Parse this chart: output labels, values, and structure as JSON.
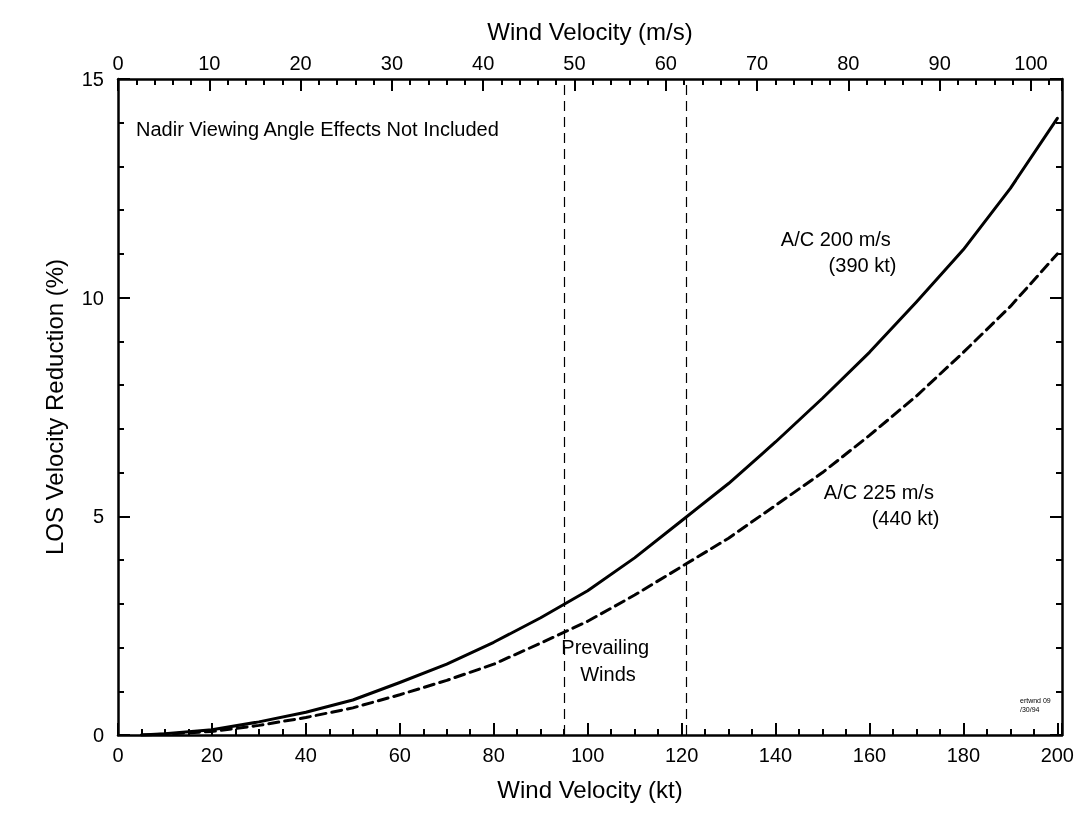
{
  "chart_data": {
    "type": "line",
    "xlabel": "Wind Velocity (kt)",
    "x2label": "Wind Velocity (m/s)",
    "ylabel": "LOS Velocity Reduction (%)",
    "x": [
      5,
      10,
      20,
      30,
      40,
      50,
      60,
      70,
      80,
      90,
      100,
      110,
      120,
      130,
      140,
      150,
      160,
      170,
      180,
      190,
      200
    ],
    "series": [
      {
        "name": "A/C 200 m/s (390 kt)",
        "color": "#000000",
        "line_style": "solid",
        "values": [
          0,
          0.03,
          0.12,
          0.3,
          0.52,
          0.8,
          1.2,
          1.62,
          2.12,
          2.68,
          3.3,
          4.05,
          4.9,
          5.75,
          6.7,
          7.7,
          8.75,
          9.9,
          11.1,
          12.5,
          14.1
        ]
      },
      {
        "name": "A/C 225 m/s (440 kt)",
        "color": "#000000",
        "line_style": "dashed",
        "values": [
          0,
          0.02,
          0.08,
          0.22,
          0.4,
          0.62,
          0.92,
          1.25,
          1.62,
          2.1,
          2.6,
          3.2,
          3.85,
          4.5,
          5.25,
          6.0,
          6.85,
          7.75,
          8.75,
          9.8,
          11.0
        ]
      }
    ],
    "xlim": [
      0,
      201
    ],
    "xticks": [
      0,
      20,
      40,
      60,
      80,
      100,
      120,
      140,
      160,
      180,
      200
    ],
    "x2lim": [
      0,
      103.4
    ],
    "x2ticks": [
      0,
      10,
      20,
      30,
      40,
      50,
      60,
      70,
      80,
      90,
      100
    ],
    "ylim": [
      0,
      15
    ],
    "yticks": [
      0,
      5,
      10,
      15
    ],
    "ref_lines": [
      {
        "axis": "x",
        "value": 95,
        "label": null,
        "line_style": "dashed",
        "color": "#000000"
      },
      {
        "axis": "x",
        "value": 121,
        "label": null,
        "line_style": "dashed",
        "color": "#000000"
      }
    ],
    "annotations": [
      "Nadir Viewing Angle Effects Not Included",
      "Prevailing Winds",
      "ertwnd 09/30/94"
    ],
    "marker": "none",
    "grid": false,
    "legend": false
  }
}
